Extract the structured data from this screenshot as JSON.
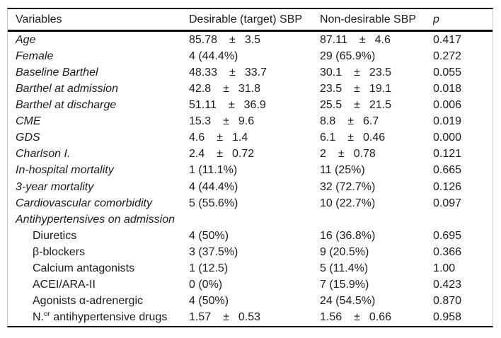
{
  "table": {
    "columns": {
      "variables": "Variables",
      "desirable": "Desirable (target) SBP",
      "non_desirable": "Non-desirable SBP",
      "p": "p"
    },
    "pm_symbol": "±",
    "rows": [
      {
        "label": "Age",
        "italic": true,
        "indent": false,
        "desirable": {
          "mean": "85.78",
          "sd": "3.5"
        },
        "non_desirable": {
          "mean": "87.11",
          "sd": "4.6"
        },
        "p": "0.417"
      },
      {
        "label": "Female",
        "italic": true,
        "indent": false,
        "desirable": {
          "text": "4 (44.4%)"
        },
        "non_desirable": {
          "text": "29 (65.9%)"
        },
        "p": "0.272"
      },
      {
        "label": "Baseline Barthel",
        "italic": true,
        "indent": false,
        "desirable": {
          "mean": "48.33",
          "sd": "33.7"
        },
        "non_desirable": {
          "mean": "30.1",
          "sd": "23.5"
        },
        "p": "0.055"
      },
      {
        "label": "Barthel at admission",
        "italic": true,
        "indent": false,
        "desirable": {
          "mean": "42.8",
          "sd": "31.8"
        },
        "non_desirable": {
          "mean": "23.5",
          "sd": "19.1"
        },
        "p": "0.018"
      },
      {
        "label": "Barthel at discharge",
        "italic": true,
        "indent": false,
        "desirable": {
          "mean": "51.11",
          "sd": "36.9"
        },
        "non_desirable": {
          "mean": "25.5",
          "sd": "21.5"
        },
        "p": "0.006"
      },
      {
        "label": "CME",
        "italic": true,
        "indent": false,
        "desirable": {
          "mean": "15.3",
          "sd": "9.6"
        },
        "non_desirable": {
          "mean": "8.8",
          "sd": "6.7"
        },
        "p": "0.019"
      },
      {
        "label": "GDS",
        "italic": true,
        "indent": false,
        "desirable": {
          "mean": "4.6",
          "sd": "1.4"
        },
        "non_desirable": {
          "mean": "6.1",
          "sd": "0.46"
        },
        "p": "0.000"
      },
      {
        "label": "Charlson I.",
        "italic": true,
        "indent": false,
        "desirable": {
          "mean": "2.4",
          "sd": "0.72"
        },
        "non_desirable": {
          "mean": "2",
          "sd": "0.78"
        },
        "p": "0.121"
      },
      {
        "label": "In-hospital mortality",
        "italic": true,
        "indent": false,
        "desirable": {
          "text": "1 (11.1%)"
        },
        "non_desirable": {
          "text": "11 (25%)"
        },
        "p": "0.665"
      },
      {
        "label": "3-year mortality",
        "italic": true,
        "indent": false,
        "desirable": {
          "text": "4 (44.4%)"
        },
        "non_desirable": {
          "text": "32 (72.7%)"
        },
        "p": "0.126"
      },
      {
        "label": "Cardiovascular comorbidity",
        "italic": true,
        "indent": false,
        "desirable": {
          "text": "5 (55.6%)"
        },
        "non_desirable": {
          "text": "10 (22.7%)"
        },
        "p": "0.097"
      },
      {
        "label": "Antihypertensives on admission",
        "italic": true,
        "indent": false,
        "section": true
      },
      {
        "label": "Diuretics",
        "italic": false,
        "indent": true,
        "desirable": {
          "text": "4 (50%)"
        },
        "non_desirable": {
          "text": "16 (36.8%)"
        },
        "p": "0.695"
      },
      {
        "label": "β-blockers",
        "italic": false,
        "indent": true,
        "desirable": {
          "text": "3 (37.5%)"
        },
        "non_desirable": {
          "text": "9 (20.5%)"
        },
        "p": "0.366"
      },
      {
        "label": "Calcium antagonists",
        "italic": false,
        "indent": true,
        "desirable": {
          "text": "1 (12.5)"
        },
        "non_desirable": {
          "text": "5 (11.4%)"
        },
        "p": "1.00"
      },
      {
        "label": "ACEI/ARA-II",
        "italic": false,
        "indent": true,
        "desirable": {
          "text": "0 (0%)"
        },
        "non_desirable": {
          "text": "7 (15.9%)"
        },
        "p": "0.423"
      },
      {
        "label": "Agonists α-adrenergic",
        "italic": false,
        "indent": true,
        "desirable": {
          "text": "4 (50%)"
        },
        "non_desirable": {
          "text": "24 (54.5%)"
        },
        "p": "0.870"
      },
      {
        "label_parts": [
          "N.",
          {
            "sup": "or"
          },
          " antihypertensive drugs"
        ],
        "italic": false,
        "indent": true,
        "desirable": {
          "mean": "1.57",
          "sd": "0.53"
        },
        "non_desirable": {
          "mean": "1.56",
          "sd": "0.66"
        },
        "p": "0.958"
      }
    ]
  },
  "colors": {
    "rule": "#0d0d0d",
    "frame_side": "#c6c6c6",
    "text": "#1c1c1c",
    "background": "#ffffff"
  }
}
